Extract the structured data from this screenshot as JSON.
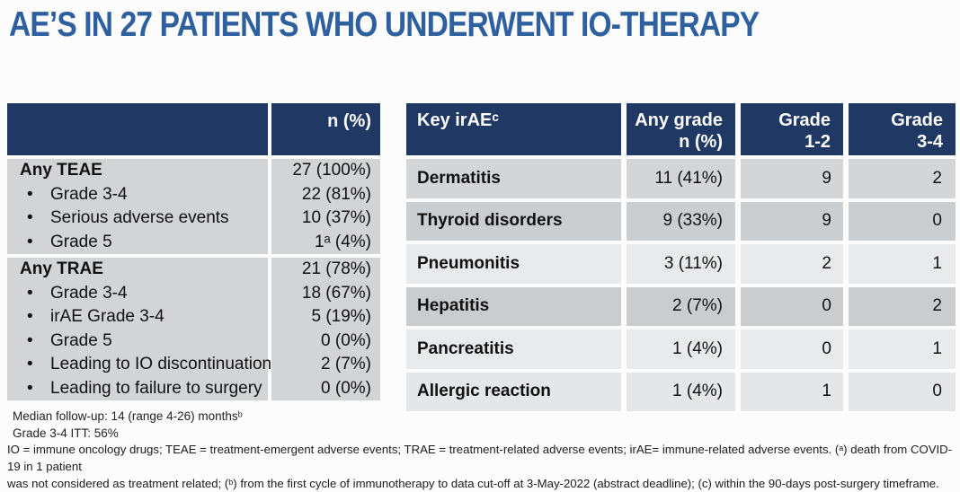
{
  "title": "AE’S IN 27 PATIENTS WHO UNDERWENT IO-THERAPY",
  "colors": {
    "header_navy": "#1f3864",
    "title_blue": "#2e5f9e",
    "left_body_gray": "#d3d4d6",
    "right_row_grays": [
      "#d3d5d7",
      "#cbced1",
      "#e9eaec",
      "#caccce",
      "#e9eaec",
      "#e4e6e8"
    ],
    "header_text": "#ffffff"
  },
  "left_table": {
    "header_value": "n (%)",
    "sections": [
      {
        "rows": [
          {
            "label": "Any TEAE",
            "value": "27 (100%)"
          },
          {
            "label": "Grade 3-4",
            "value": "22 (81%)"
          },
          {
            "label": "Serious adverse events",
            "value": "10 (37%)"
          },
          {
            "label": "Grade 5",
            "value": "1ᵃ (4%)"
          }
        ]
      },
      {
        "rows": [
          {
            "label": "Any TRAE",
            "value": "21 (78%)"
          },
          {
            "label": "Grade 3-4",
            "value": "18 (67%)"
          },
          {
            "label": "irAE Grade 3-4",
            "value": "5 (19%)"
          },
          {
            "label": "Grade 5",
            "value": "0 (0%)"
          },
          {
            "label": "Leading to IO discontinuation",
            "value": "2 (7%)"
          },
          {
            "label": "Leading to failure to surgery",
            "value": "0 (0%)"
          }
        ]
      }
    ],
    "footnotes": {
      "line1": "Median follow-up: 14 (range 4-26) monthsᵇ",
      "line2": "Grade 3-4 ITT: 56%"
    }
  },
  "right_table": {
    "headers": [
      {
        "line1": "Key irAEᶜ",
        "line2": ""
      },
      {
        "line1": "Any grade",
        "line2": "n (%)"
      },
      {
        "line1": "Grade",
        "line2": "1-2"
      },
      {
        "line1": "Grade",
        "line2": "3-4"
      }
    ],
    "rows": [
      {
        "label": "Dermatitis",
        "any_grade": "11 (41%)",
        "grade_1_2": "9",
        "grade_3_4": "2"
      },
      {
        "label": "Thyroid disorders",
        "any_grade": "9 (33%)",
        "grade_1_2": "9",
        "grade_3_4": "0"
      },
      {
        "label": "Pneumonitis",
        "any_grade": "3 (11%)",
        "grade_1_2": "2",
        "grade_3_4": "1"
      },
      {
        "label": "Hepatitis",
        "any_grade": "2 (7%)",
        "grade_1_2": "0",
        "grade_3_4": "2"
      },
      {
        "label": "Pancreatitis",
        "any_grade": "1 (4%)",
        "grade_1_2": "0",
        "grade_3_4": "1"
      },
      {
        "label": "Allergic reaction",
        "any_grade": "1 (4%)",
        "grade_1_2": "1",
        "grade_3_4": "0"
      }
    ]
  },
  "footer": {
    "line1": "IO = immune oncology drugs; TEAE = treatment-emergent adverse events; TRAE = treatment-related adverse events; irAE= immune-related adverse events. (ᵃ) death from COVID-19 in 1 patient",
    "line2": "was not considered as treatment related; (ᵇ) from the first cycle of immunotherapy to data cut-off at 3-May-2022 (abstract deadline); (c) within the 90-days post-surgery timeframe."
  }
}
